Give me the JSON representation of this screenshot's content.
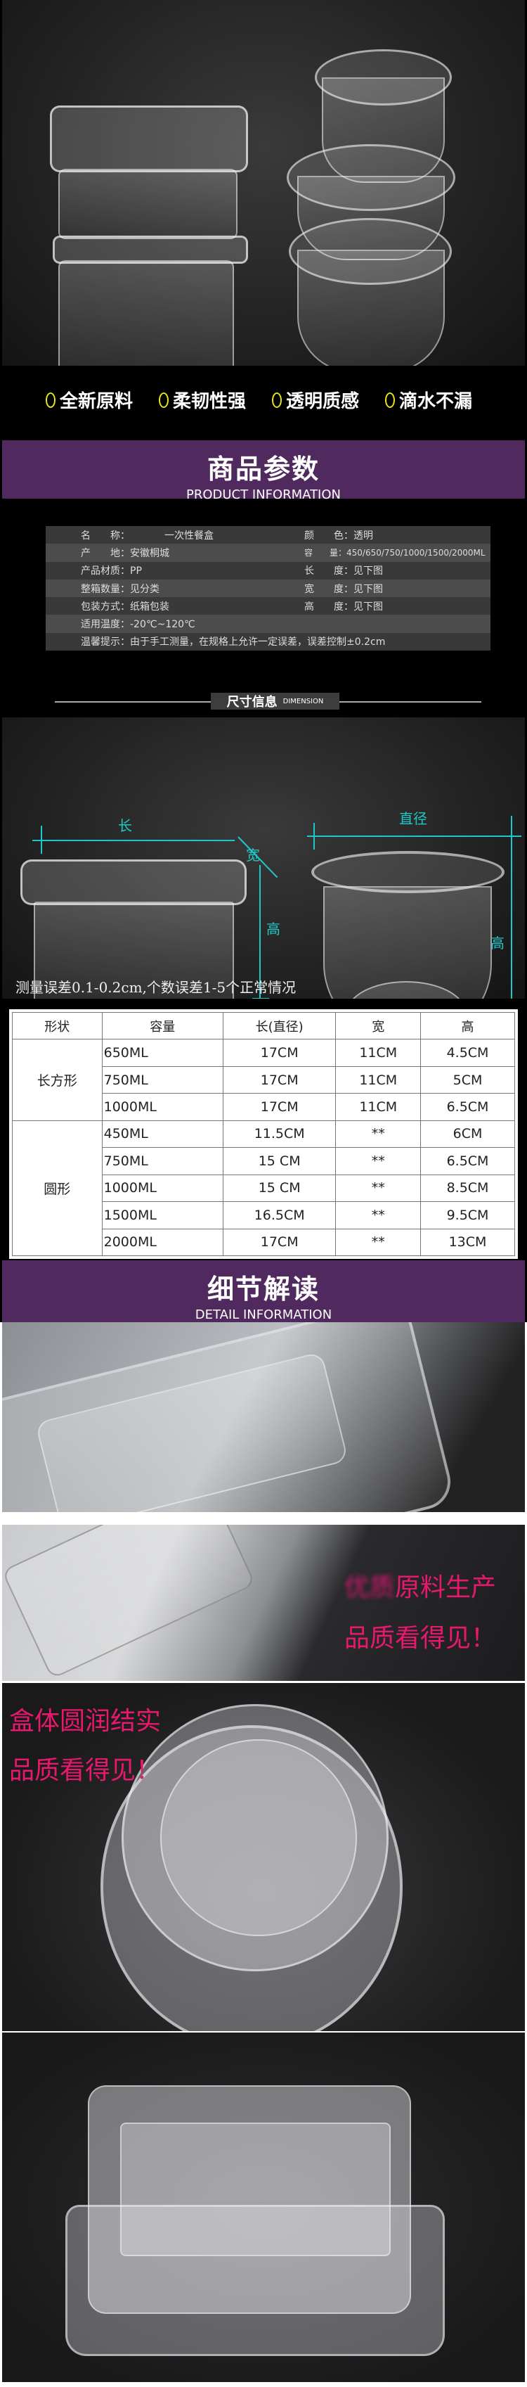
{
  "features": [
    {
      "label": "全新原料"
    },
    {
      "label": "柔韧性强"
    },
    {
      "label": "透明质感"
    },
    {
      "label": "滴水不漏"
    }
  ],
  "product_info": {
    "title": "商品参数",
    "subtitle": "PRODUCT INFORMATION"
  },
  "spec_rows": [
    {
      "left": "名　　称：　　　　一次性餐盒",
      "right": "颜　　色：透明"
    },
    {
      "left": "产　　地：安徽桐城",
      "right": "容　　量：450/650/750/1000/1500/2000ML"
    },
    {
      "left": "产品材质：PP",
      "right": "长　　度：见下图"
    },
    {
      "left": "整箱数量：见分类",
      "right": "宽　　度：见下图"
    },
    {
      "left": "包装方式：纸箱包装",
      "right": "高　　度：见下图"
    },
    {
      "left": "适用温度：-20℃~120℃",
      "right": ""
    },
    {
      "left": "温馨提示：由于手工测量，在规格上允许一定误差，误差控制±0.2cm",
      "right": ""
    }
  ],
  "dimension": {
    "title": "尺寸信息",
    "subtitle": "DIMENSION",
    "labels": {
      "length": "长",
      "width": "宽",
      "height": "高",
      "diameter": "直径",
      "height_round": "高"
    },
    "caption": "测量误差0.1-0.2cm,个数误差1-5个正常情况",
    "accent": "#1ec8c8"
  },
  "size_table": {
    "headers": [
      "形状",
      "容量",
      "长(直径)",
      "宽",
      "高"
    ],
    "groups": [
      {
        "shape": "长方形",
        "rows": [
          [
            "650ML",
            "17CM",
            "11CM",
            "4.5CM"
          ],
          [
            "750ML",
            "17CM",
            "11CM",
            "5CM"
          ],
          [
            "1000ML",
            "17CM",
            "11CM",
            "6.5CM"
          ]
        ]
      },
      {
        "shape": "圆形",
        "rows": [
          [
            "450ML",
            "11.5CM",
            "**",
            "6CM"
          ],
          [
            "750ML",
            "15 CM",
            "**",
            "6.5CM"
          ],
          [
            "1000ML",
            "15 CM",
            "**",
            "8.5CM"
          ],
          [
            "1500ML",
            "16.5CM",
            "**",
            "9.5CM"
          ],
          [
            "2000ML",
            "17CM",
            "**",
            "13CM"
          ]
        ]
      }
    ]
  },
  "detail_info": {
    "title": "细节解读",
    "subtitle": "DETAIL INFORMATION"
  },
  "detail_captions": {
    "d2_line1_blurred": "优质",
    "d2_line1": "原料生产",
    "d2_line2": "品质看得见！",
    "d3_line1": "盒体圆润结实",
    "d3_line2": "品质看得见！",
    "color": "#e8186e"
  }
}
